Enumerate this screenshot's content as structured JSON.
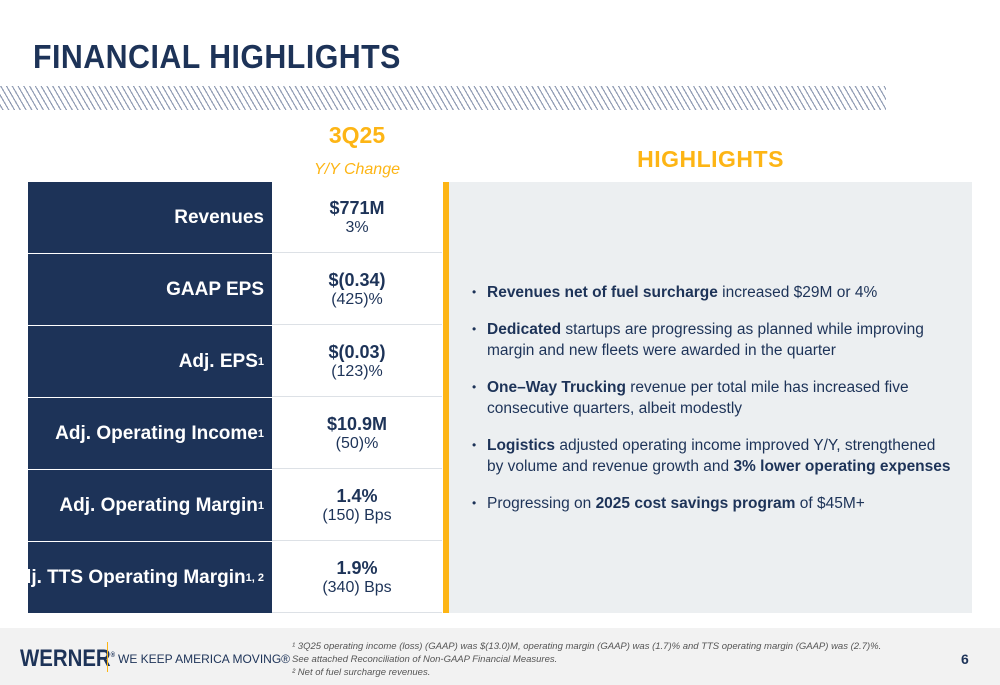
{
  "title": "FINANCIAL HIGHLIGHTS",
  "period": {
    "label": "3Q25",
    "sub": "Y/Y Change"
  },
  "metrics": [
    {
      "label": "Revenues",
      "sup": "",
      "value": "$771M",
      "change": "3%"
    },
    {
      "label": "GAAP EPS",
      "sup": "",
      "value": "$(0.34)",
      "change": "(425)%"
    },
    {
      "label": "Adj. EPS",
      "sup": "1",
      "value": "$(0.03)",
      "change": "(123)%"
    },
    {
      "label": "Adj. Operating Income",
      "sup": "1",
      "value": "$10.9M",
      "change": "(50)%"
    },
    {
      "label": "Adj. Operating Margin",
      "sup": "1",
      "value": "1.4%",
      "change": "(150) Bps"
    },
    {
      "label": "Adj. TTS Operating Margin",
      "sup": "1, 2",
      "value": "1.9%",
      "change": "(340) Bps"
    }
  ],
  "highlights": {
    "title": "HIGHLIGHTS",
    "items": [
      {
        "b1": "Revenues net of fuel surcharge",
        "t1": " increased $29M or 4%",
        "b2": "",
        "t2": ""
      },
      {
        "b1": "Dedicated",
        "t1": " startups are progressing as planned while improving margin and new fleets were awarded in the quarter",
        "b2": "",
        "t2": ""
      },
      {
        "b1": "One–Way Trucking",
        "t1": " revenue per total mile has increased five consecutive quarters, albeit modestly",
        "b2": "",
        "t2": ""
      },
      {
        "b1": "Logistics",
        "t1": " adjusted operating income improved Y/Y, strengthened by volume and revenue growth and ",
        "b2": "3% lower operating expenses",
        "t2": ""
      },
      {
        "b1": "",
        "t1": "Progressing on ",
        "b2": "2025 cost savings program",
        "t2": " of $45M+"
      }
    ]
  },
  "footer": {
    "logo": "WERNER",
    "slogan": "WE KEEP AMERICA MOVING®",
    "note1": "¹ 3Q25 operating income (loss) (GAAP) was $(13.0)M, operating margin (GAAP) was (1.7)% and TTS operating margin (GAAP) was (2.7)%. See attached Reconciliation of Non-GAAP Financial Measures.",
    "note2": "² Net of fuel surcharge revenues.",
    "page": "6"
  },
  "colors": {
    "navy": "#1d3358",
    "gold": "#fdb515"
  }
}
